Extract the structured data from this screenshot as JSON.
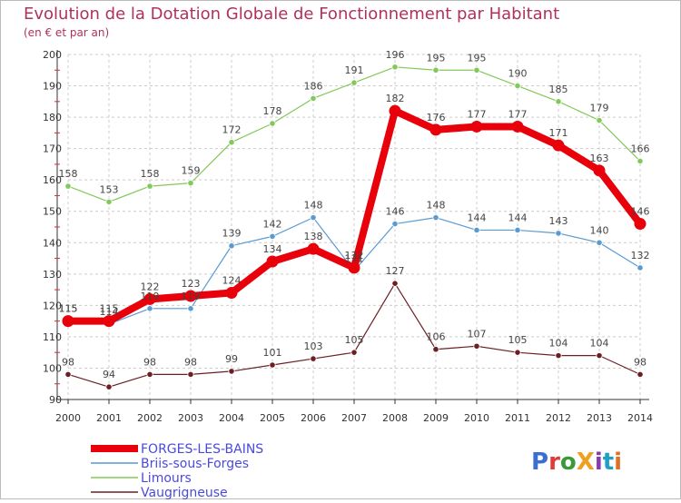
{
  "chart_data": {
    "type": "line",
    "title": "Evolution de la Dotation Globale de Fonctionnement par Habitant",
    "subtitle": "(en € et par an)",
    "x": [
      "2000",
      "2001",
      "2002",
      "2003",
      "2004",
      "2005",
      "2006",
      "2007",
      "2008",
      "2009",
      "2010",
      "2011",
      "2012",
      "2013",
      "2014"
    ],
    "ylim": [
      90,
      200
    ],
    "yticks": [
      90,
      100,
      110,
      120,
      130,
      140,
      150,
      160,
      170,
      180,
      190,
      200
    ],
    "grid": true,
    "legend_position": "bottom-left",
    "series": [
      {
        "name": "Limours",
        "color": "#82c85a",
        "values": [
          158,
          153,
          158,
          159,
          172,
          178,
          186,
          191,
          196,
          195,
          195,
          190,
          185,
          179,
          166
        ]
      },
      {
        "name": "Briis-sous-Forges",
        "color": "#5a9ad2",
        "values": [
          115,
          114,
          119,
          119,
          139,
          142,
          148,
          131,
          146,
          148,
          144,
          144,
          143,
          140,
          132
        ]
      },
      {
        "name": "Vaugrigneuse",
        "color": "#6b1f24",
        "values": [
          98,
          94,
          98,
          98,
          99,
          101,
          103,
          105,
          127,
          106,
          107,
          105,
          104,
          104,
          98
        ]
      },
      {
        "name": "FORGES-LES-BAINS",
        "color": "#e8000b",
        "values": [
          115,
          115,
          122,
          123,
          124,
          134,
          138,
          132,
          182,
          176,
          177,
          177,
          171,
          163,
          146
        ]
      }
    ],
    "legend": [
      "FORGES-LES-BAINS",
      "Briis-sous-Forges",
      "Limours",
      "Vaugrigneuse"
    ],
    "colors": {
      "title": "#b03060",
      "axis": "#333333",
      "grid": "#cccccc",
      "legend_text": "#4a4ae0"
    }
  },
  "brand": {
    "text": "ProXiti"
  }
}
